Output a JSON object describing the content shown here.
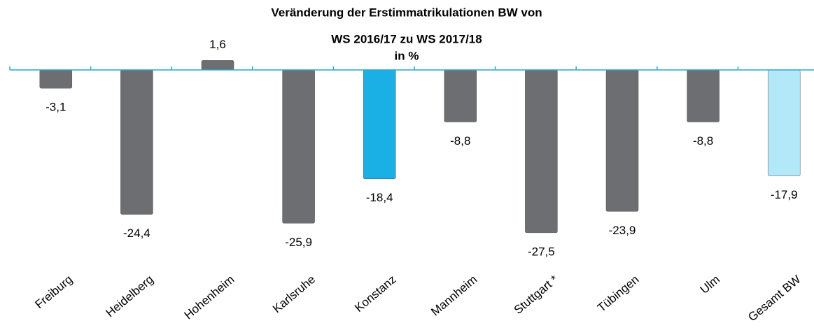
{
  "chart_data": {
    "type": "bar",
    "title": [
      "Veränderung der Erstimmatrikulationen BW von",
      "WS 2016/17 zu WS 2017/18",
      "in %"
    ],
    "categories": [
      "Freiburg",
      "Heidelberg",
      "Hohenheim",
      "Karlsruhe",
      "Konstanz",
      "Mannheim",
      "Stuttgart *",
      "Tübingen",
      "Ulm",
      "Gesamt BW"
    ],
    "values": [
      -3.1,
      -24.4,
      1.6,
      -25.9,
      -18.4,
      -8.8,
      -27.5,
      -23.9,
      -8.8,
      -17.9
    ],
    "value_labels": [
      "-3,1",
      "-24,4",
      "1,6",
      "-25,9",
      "-18,4",
      "-8,8",
      "-27,5",
      "-23,9",
      "-8,8",
      "-17,9"
    ],
    "colors": [
      "#6d6e71",
      "#6d6e71",
      "#6d6e71",
      "#6d6e71",
      "#1ab0e6",
      "#6d6e71",
      "#6d6e71",
      "#6d6e71",
      "#6d6e71",
      "#b3e8f8"
    ],
    "axis_color": "#2aa6d3",
    "ylim": [
      -30,
      5
    ]
  }
}
